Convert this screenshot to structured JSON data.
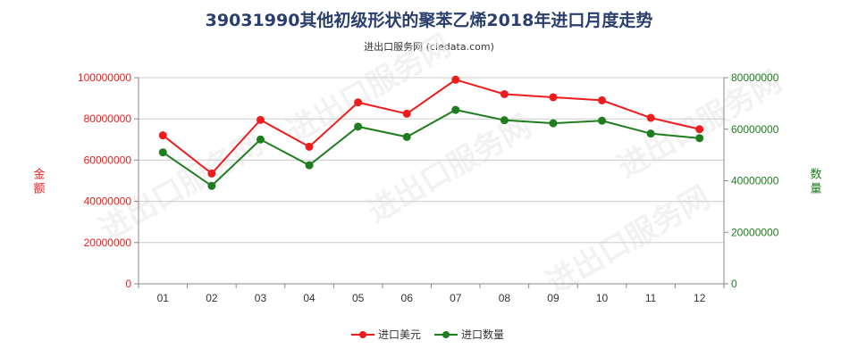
{
  "title": "39031990其他初级形状的聚苯乙烯2018年进口月度走势",
  "subtitle": "进出口服务网 (ciedata.com)",
  "watermark": "进出口服务网",
  "colors": {
    "left": "#ee1c1c",
    "right": "#1e7d1e",
    "grid": "#cccccc",
    "axis": "#888888"
  },
  "chart_data": {
    "type": "line",
    "categories": [
      "01",
      "02",
      "03",
      "04",
      "05",
      "06",
      "07",
      "08",
      "09",
      "10",
      "11",
      "12"
    ],
    "series": [
      {
        "name": "进口美元",
        "axis": "left",
        "color": "#ee1c1c",
        "values": [
          72000000,
          53500000,
          79500000,
          66500000,
          88000000,
          82500000,
          99000000,
          92000000,
          90500000,
          89000000,
          80500000,
          75000000
        ]
      },
      {
        "name": "进口数量",
        "axis": "right",
        "color": "#1e7d1e",
        "values": [
          51000000,
          38000000,
          56000000,
          46000000,
          61000000,
          57000000,
          67500000,
          63500000,
          62300000,
          63300000,
          58300000,
          56500000
        ]
      }
    ],
    "y_left": {
      "label": "金额",
      "min": 0,
      "max": 100000000,
      "ticks": [
        "0",
        "20000000",
        "40000000",
        "60000000",
        "80000000",
        "100000000"
      ]
    },
    "y_right": {
      "label": "数量",
      "min": 0,
      "max": 80000000,
      "ticks": [
        "0",
        "20000000",
        "40000000",
        "60000000",
        "80000000"
      ]
    },
    "grid": "horizontal",
    "legend": "bottom-center"
  }
}
